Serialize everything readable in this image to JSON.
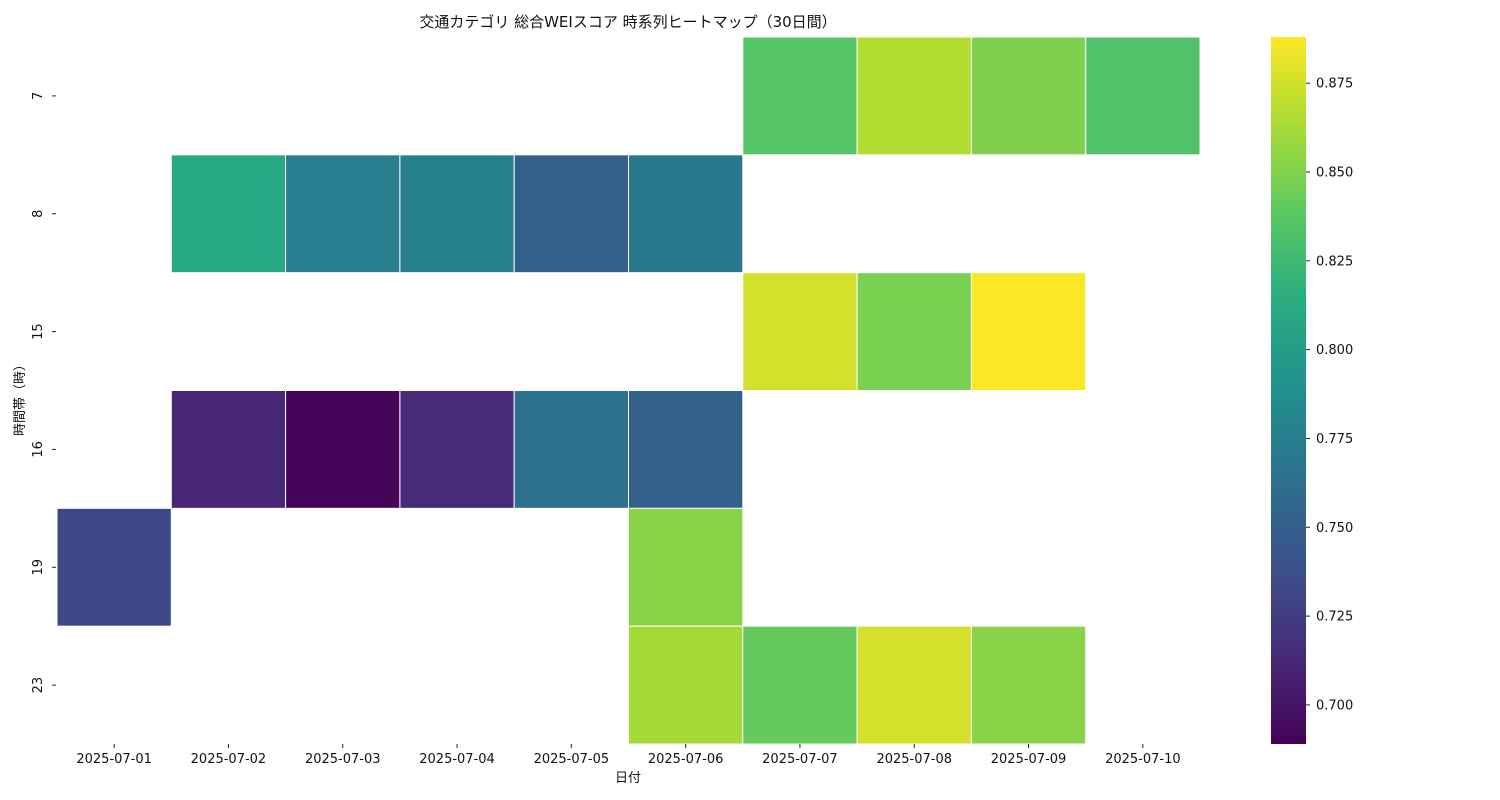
{
  "chart_data": {
    "type": "heatmap",
    "title": "交通カテゴリ 総合WEIスコア 時系列ヒートマップ（30日間）",
    "xlabel": "日付",
    "ylabel": "時間帯（時）",
    "x_categories": [
      "2025-07-01",
      "2025-07-02",
      "2025-07-03",
      "2025-07-04",
      "2025-07-05",
      "2025-07-06",
      "2025-07-07",
      "2025-07-08",
      "2025-07-09",
      "2025-07-10"
    ],
    "y_categories": [
      "7",
      "8",
      "15",
      "16",
      "19",
      "23"
    ],
    "values": [
      [
        null,
        null,
        null,
        null,
        null,
        null,
        0.835,
        0.866,
        0.85,
        0.833
      ],
      [
        null,
        0.812,
        0.774,
        0.776,
        0.75,
        0.771,
        null,
        null,
        null,
        null
      ],
      [
        null,
        null,
        null,
        null,
        null,
        null,
        0.876,
        0.848,
        0.887,
        null
      ],
      [
        null,
        0.712,
        0.691,
        0.714,
        0.765,
        0.751,
        null,
        null,
        null,
        null
      ],
      [
        0.733,
        null,
        null,
        null,
        null,
        0.853,
        null,
        null,
        null,
        null
      ],
      [
        null,
        null,
        null,
        null,
        null,
        0.862,
        0.841,
        0.876,
        0.853,
        null
      ]
    ],
    "colormap": "viridis",
    "color_range": [
      0.689,
      0.888
    ],
    "colorbar_ticks": [
      "0.700",
      "0.725",
      "0.750",
      "0.775",
      "0.800",
      "0.825",
      "0.850",
      "0.875"
    ],
    "grid": false,
    "cell_border_color": "#ffffff"
  }
}
